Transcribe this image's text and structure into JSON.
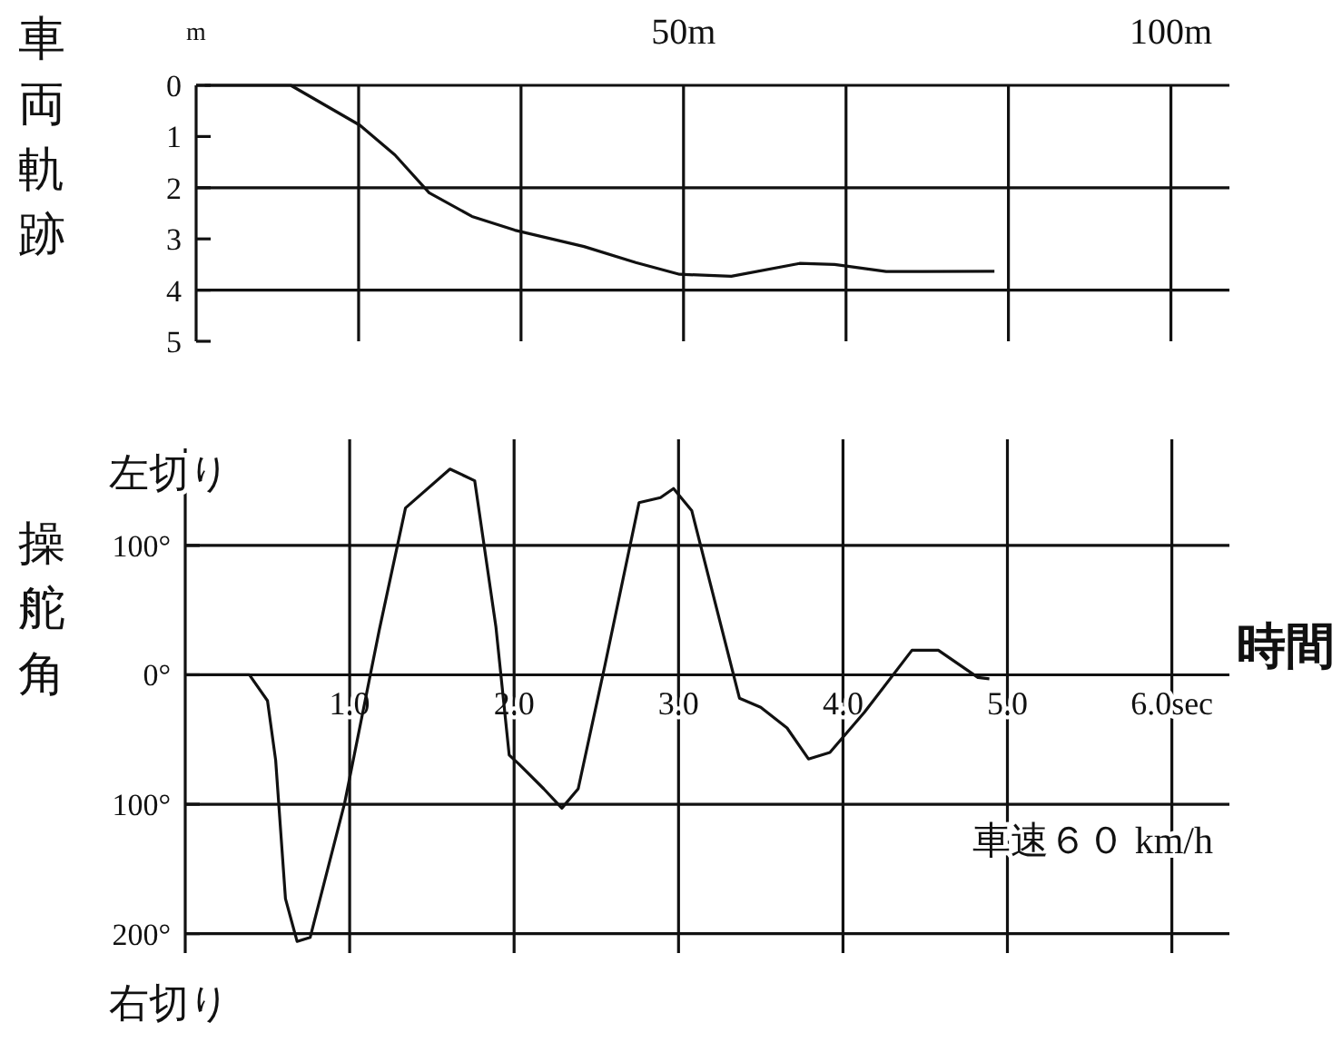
{
  "chart_data": [
    {
      "type": "line",
      "ylabel": "車両軌跡",
      "annotations": [
        "m"
      ],
      "x": [
        0.9,
        9.7,
        16.8,
        20.4,
        23.9,
        28.3,
        32.7,
        39.8,
        45.1,
        49.6,
        54.9,
        61.9,
        65.5,
        70.8,
        81.9
      ],
      "values": [
        0,
        0,
        0.78,
        1.36,
        2.1,
        2.56,
        2.83,
        3.15,
        3.46,
        3.69,
        3.73,
        3.48,
        3.5,
        3.64,
        3.63
      ],
      "color": "#111111",
      "xlim": [
        0,
        106
      ],
      "xticks": [
        {
          "value": 16.67,
          "label": null
        },
        {
          "value": 33.33,
          "label": null
        },
        {
          "value": 50,
          "label": "50m"
        },
        {
          "value": 66.67,
          "label": null
        },
        {
          "value": 83.33,
          "label": null
        },
        {
          "value": 100,
          "label": "100m"
        }
      ],
      "ylim": [
        5,
        0
      ],
      "yticks": [
        0,
        1,
        2,
        3,
        4,
        5
      ],
      "grid": "x",
      "ref_lines": [
        {
          "axis": "y",
          "value": 2
        },
        {
          "axis": "y",
          "value": 4
        }
      ]
    },
    {
      "type": "line",
      "ylabel": "操舵角",
      "xlabel": "時間",
      "annotations": [
        "左切り",
        "右切り",
        "車速６０ km/h"
      ],
      "x": [
        0,
        0.39,
        0.5,
        0.55,
        0.61,
        0.68,
        0.76,
        0.97,
        1.18,
        1.34,
        1.61,
        1.76,
        1.89,
        1.97,
        2.03,
        2.18,
        2.29,
        2.39,
        2.55,
        2.76,
        2.89,
        2.97,
        3.08,
        3.37,
        3.5,
        3.66,
        3.79,
        3.92,
        4.13,
        4.42,
        4.58,
        4.82,
        4.89
      ],
      "values": [
        0,
        0,
        -20,
        -66,
        -173,
        -206,
        -203,
        -99,
        35,
        129,
        159,
        150,
        37,
        -62,
        -69,
        -88,
        -103,
        -88,
        6,
        133,
        137,
        144,
        127,
        -18,
        -25,
        -41,
        -65,
        -60,
        -29,
        19,
        19,
        -2,
        -3
      ],
      "color": "#111111",
      "xlim": [
        0,
        6.35
      ],
      "xticks": [
        {
          "value": 1,
          "label": "1.0"
        },
        {
          "value": 2,
          "label": "2.0"
        },
        {
          "value": 3,
          "label": "3.0"
        },
        {
          "value": 4,
          "label": "4.0"
        },
        {
          "value": 5,
          "label": "5.0"
        },
        {
          "value": 6,
          "label": "6.0sec"
        }
      ],
      "ylim": [
        -215,
        175
      ],
      "yticks": [
        {
          "value": 100,
          "label": "100°"
        },
        {
          "value": 0,
          "label": "0°"
        },
        {
          "value": -100,
          "label": "100°"
        },
        {
          "value": -200,
          "label": "200°"
        }
      ],
      "grid": true
    }
  ]
}
